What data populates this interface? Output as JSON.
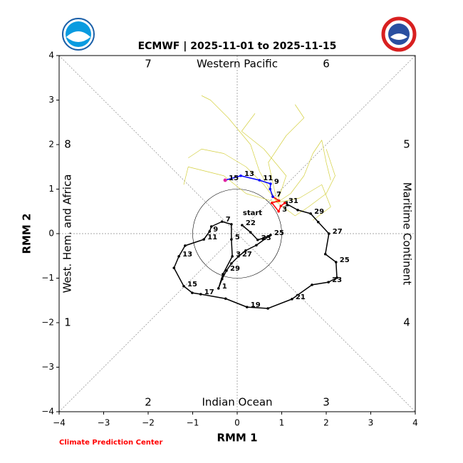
{
  "chart_data": {
    "type": "line",
    "title": "ECMWF | 2025-11-01 to 2025-11-15",
    "xlabel": "RMM 1",
    "ylabel": "RMM 2",
    "footer": "Climate Prediction Center",
    "annotation": "start",
    "phases": [
      "1",
      "2",
      "3",
      "4",
      "5",
      "6",
      "7",
      "8"
    ],
    "regions": [
      "Western Pacific",
      "Indian Ocean",
      "West. Hem. and Africa",
      "Maritime Continent"
    ],
    "xlim": [
      -4,
      4
    ],
    "ylim": [
      -4,
      4
    ],
    "xticks": [
      {
        "value": -4,
        "label": "−4"
      },
      {
        "value": -3,
        "label": "−3"
      },
      {
        "value": -2,
        "label": "−2"
      },
      {
        "value": -1,
        "label": "−1"
      },
      0,
      1,
      2,
      3,
      4
    ],
    "yticks": [
      {
        "value": -4,
        "label": "−4"
      },
      {
        "value": -3,
        "label": "−3"
      },
      {
        "value": -2,
        "label": "−2"
      },
      {
        "value": -1,
        "label": "−1"
      },
      0,
      1,
      2,
      3,
      4
    ],
    "ensemble_color": "#d4d040",
    "ensemble": [
      {
        "x": [
          0.9,
          1.2,
          1.5,
          1.7,
          1.9,
          2.0,
          2.1
        ],
        "values": [
          0.7,
          0.9,
          1.3,
          1.8,
          2.1,
          1.6,
          1.2
        ]
      },
      {
        "x": [
          0.9,
          0.6,
          0.2,
          -0.3,
          -0.8,
          -1.1
        ],
        "values": [
          0.7,
          1.1,
          1.5,
          1.8,
          1.9,
          1.7
        ]
      },
      {
        "x": [
          0.9,
          1.3,
          1.6,
          2.0,
          2.2,
          2.0
        ],
        "values": [
          0.7,
          0.4,
          0.6,
          0.9,
          1.3,
          1.9
        ]
      },
      {
        "x": [
          0.9,
          0.5,
          0.3,
          -0.2,
          -0.6,
          -0.8
        ],
        "values": [
          0.7,
          1.4,
          2.0,
          2.6,
          3.0,
          3.1
        ]
      },
      {
        "x": [
          0.9,
          0.7,
          1.1,
          1.5,
          1.3
        ],
        "values": [
          0.7,
          1.6,
          2.2,
          2.6,
          2.9
        ]
      },
      {
        "x": [
          0.9,
          0.2,
          -0.3,
          -1.1,
          -1.2
        ],
        "values": [
          0.7,
          0.9,
          1.3,
          1.5,
          1.1
        ]
      },
      {
        "x": [
          0.9,
          1.1,
          0.6,
          0.1,
          0.4
        ],
        "values": [
          0.7,
          1.3,
          1.9,
          2.3,
          2.7
        ]
      },
      {
        "x": [
          0.9,
          1.4,
          1.9,
          2.1,
          1.7
        ],
        "values": [
          0.7,
          0.8,
          1.1,
          0.6,
          0.3
        ]
      }
    ],
    "series": [
      {
        "color": "#000000",
        "x": [
          0.11,
          0.3,
          0.46,
          0.59,
          0.75,
          0.43,
          0.19,
          0.03,
          -0.13,
          -0.24,
          -0.34,
          -0.42,
          -0.32,
          -0.11,
          -0.13,
          -0.13,
          -0.34,
          -0.58,
          -0.62,
          -0.75,
          -1.17,
          -1.31,
          -1.42,
          -1.2,
          -1.01,
          -0.82,
          -0.26,
          0.22,
          0.69,
          1.23,
          1.68,
          2.05,
          2.24,
          2.22,
          1.98,
          2.06,
          1.82,
          1.65,
          1.36,
          1.07
        ],
        "values": [
          0.19,
          0.03,
          -0.14,
          -0.1,
          -0.03,
          -0.26,
          -0.38,
          -0.51,
          -0.67,
          -0.83,
          -1.02,
          -1.23,
          -0.91,
          -0.51,
          -0.13,
          0.21,
          0.27,
          0.16,
          0.05,
          -0.13,
          -0.27,
          -0.51,
          -0.77,
          -1.18,
          -1.33,
          -1.36,
          -1.46,
          -1.65,
          -1.68,
          -1.47,
          -1.15,
          -1.09,
          -0.99,
          -0.64,
          -0.46,
          0.0,
          0.26,
          0.45,
          0.53,
          0.69
        ],
        "point_labels": [
          "22",
          null,
          "23",
          null,
          "25",
          null,
          null,
          "27",
          null,
          "29",
          null,
          "1",
          null,
          "3",
          "5",
          null,
          "7",
          null,
          "9",
          "11",
          null,
          "13",
          null,
          "15",
          null,
          "17",
          null,
          "19",
          null,
          "21",
          null,
          "23",
          null,
          "25",
          null,
          "27",
          null,
          "29",
          null,
          "31"
        ]
      },
      {
        "color": "#ff0000",
        "x": [
          1.07,
          0.98,
          0.93,
          0.78,
          0.94,
          0.8
        ],
        "values": [
          0.69,
          0.62,
          0.5,
          0.69,
          0.74,
          0.83
        ],
        "point_labels": [
          null,
          "1",
          "3",
          null,
          null,
          "7"
        ]
      },
      {
        "color": "#0000ff",
        "x": [
          0.8,
          0.74,
          0.75,
          0.5,
          0.08,
          -0.27
        ],
        "values": [
          0.83,
          1.0,
          1.12,
          1.2,
          1.3,
          1.2
        ],
        "point_labels": [
          null,
          null,
          "9",
          "11",
          "13",
          "15"
        ]
      }
    ]
  }
}
